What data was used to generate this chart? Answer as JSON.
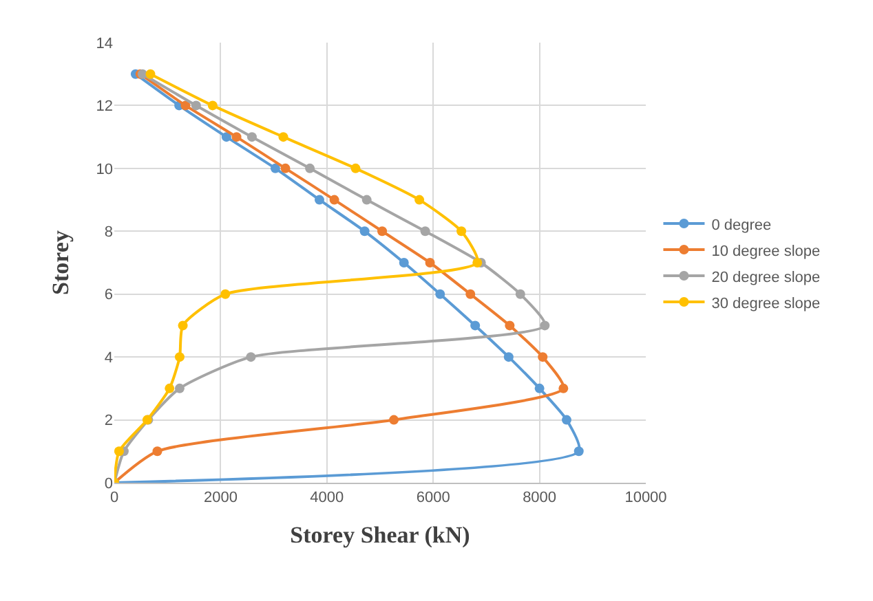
{
  "chart_data": {
    "type": "line",
    "xlabel": "Storey Shear (kN)",
    "ylabel": "Storey",
    "xlim": [
      0,
      10000
    ],
    "xticks": [
      0,
      2000,
      4000,
      6000,
      8000,
      10000
    ],
    "ylim": [
      0,
      14
    ],
    "yticks": [
      0,
      2,
      4,
      6,
      8,
      10,
      12,
      14
    ],
    "grid": true,
    "legend": "right",
    "marker": "circle",
    "line_style": "solid",
    "series": [
      {
        "name": "0 degree",
        "color": "#5b9bd5",
        "x": [
          0,
          8740,
          8510,
          8000,
          7420,
          6790,
          6130,
          5450,
          4710,
          3860,
          3030,
          2110,
          1220,
          400
        ],
        "values": [
          0,
          1,
          2,
          3,
          4,
          5,
          6,
          7,
          8,
          9,
          10,
          11,
          12,
          13
        ]
      },
      {
        "name": "10 degree slope",
        "color": "#ed7d31",
        "x": [
          0,
          810,
          5260,
          8450,
          8060,
          7440,
          6700,
          5940,
          5040,
          4140,
          3220,
          2300,
          1340,
          490
        ],
        "values": [
          0,
          1,
          2,
          3,
          4,
          5,
          6,
          7,
          8,
          9,
          10,
          11,
          12,
          13
        ]
      },
      {
        "name": "20 degree slope",
        "color": "#a5a5a5",
        "x": [
          0,
          180,
          640,
          1230,
          2570,
          8100,
          7640,
          6900,
          5850,
          4750,
          3680,
          2590,
          1540,
          530
        ],
        "values": [
          0,
          1,
          2,
          3,
          4,
          5,
          6,
          7,
          8,
          9,
          10,
          11,
          12,
          13
        ]
      },
      {
        "name": "30 degree slope",
        "color": "#ffc000",
        "x": [
          0,
          90,
          620,
          1040,
          1230,
          1290,
          2090,
          6830,
          6530,
          5740,
          4540,
          3180,
          1850,
          680
        ],
        "values": [
          0,
          1,
          2,
          3,
          4,
          5,
          6,
          7,
          8,
          9,
          10,
          11,
          12,
          13
        ]
      }
    ]
  }
}
